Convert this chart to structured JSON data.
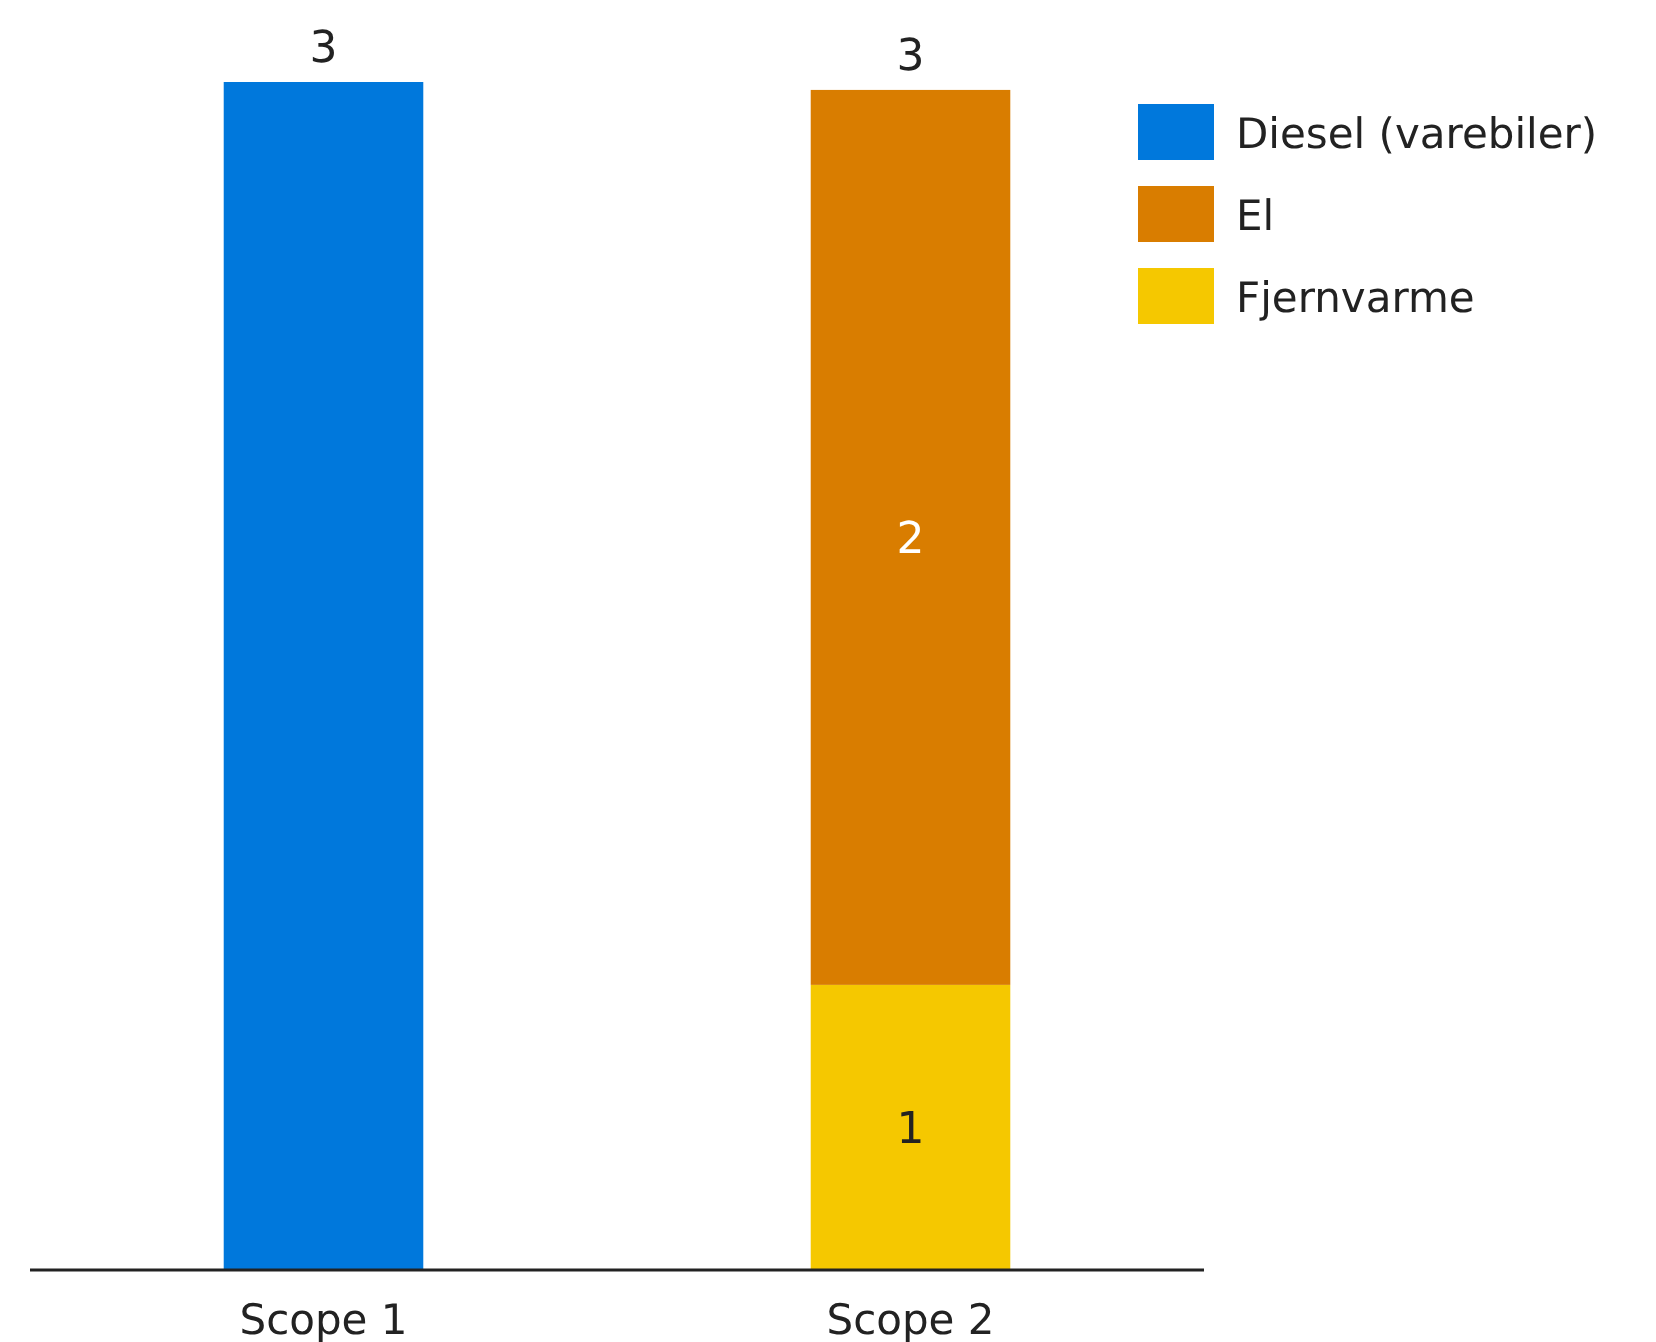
{
  "chart_data": {
    "type": "bar",
    "stacked": true,
    "categories": [
      "Scope 1",
      "Scope 2"
    ],
    "series": [
      {
        "name": "Fjernvarme",
        "color": "#f5c800",
        "values": [
          null,
          0.72
        ],
        "value_labels": [
          null,
          "1"
        ]
      },
      {
        "name": "El",
        "color": "#d97d00",
        "values": [
          null,
          2.26
        ],
        "value_labels": [
          null,
          "2"
        ]
      },
      {
        "name": "Diesel (varebiler)",
        "color": "#0078dc",
        "values": [
          3.0,
          null
        ],
        "value_labels": [
          null,
          null
        ]
      }
    ],
    "totals": [
      "3",
      "3"
    ],
    "legend": "top right",
    "tick_labels": "x"
  }
}
